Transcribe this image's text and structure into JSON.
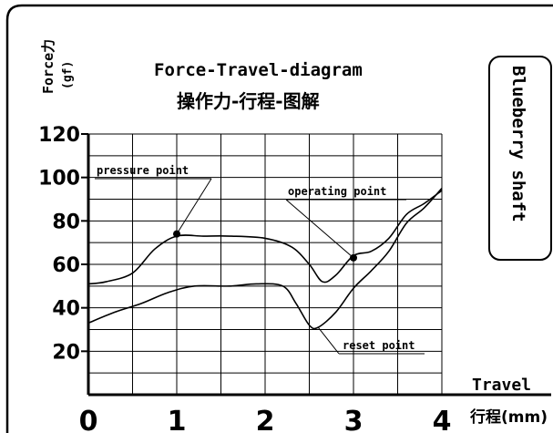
{
  "chart_data": {
    "type": "line",
    "title": "Force-Travel-diagram",
    "subtitle": "操作力-行程-图解",
    "ylabel": "Force力",
    "yunit": "(gf)",
    "xlabel": "Travel",
    "xunit": "行程(mm)",
    "xlim": [
      0,
      4
    ],
    "ylim": [
      0,
      120
    ],
    "x_ticks": [
      "0",
      "1",
      "2",
      "3",
      "4"
    ],
    "y_ticks": [
      "20",
      "40",
      "60",
      "80",
      "100",
      "120"
    ],
    "grid": true,
    "series": [
      {
        "points": [
          [
            0,
            51
          ],
          [
            0.2,
            52
          ],
          [
            0.5,
            56
          ],
          [
            0.75,
            67
          ],
          [
            1,
            73
          ],
          [
            1.3,
            73
          ],
          [
            1.6,
            73
          ],
          [
            2.0,
            72
          ],
          [
            2.3,
            68
          ],
          [
            2.5,
            60
          ],
          [
            2.65,
            52
          ],
          [
            2.8,
            55
          ],
          [
            3.0,
            64
          ],
          [
            3.2,
            66
          ],
          [
            3.4,
            72
          ],
          [
            3.6,
            83
          ],
          [
            3.8,
            88
          ],
          [
            4,
            94
          ]
        ]
      },
      {
        "points": [
          [
            0,
            33
          ],
          [
            0.3,
            38
          ],
          [
            0.6,
            42
          ],
          [
            0.9,
            47
          ],
          [
            1.2,
            50
          ],
          [
            1.6,
            50
          ],
          [
            1.9,
            51
          ],
          [
            2.2,
            50
          ],
          [
            2.35,
            42
          ],
          [
            2.5,
            32
          ],
          [
            2.6,
            31
          ],
          [
            2.8,
            38
          ],
          [
            3.0,
            49
          ],
          [
            3.2,
            57
          ],
          [
            3.4,
            66
          ],
          [
            3.6,
            79
          ],
          [
            3.8,
            86
          ],
          [
            4,
            95
          ]
        ]
      }
    ],
    "annotations": [
      {
        "text": "pressure point",
        "x": 1,
        "y": 74
      },
      {
        "text": "operating point",
        "x": 3,
        "y": 63
      },
      {
        "text": "reset point",
        "x": 2.6,
        "y": 31
      }
    ],
    "side_label": "Blueberry shaft"
  }
}
